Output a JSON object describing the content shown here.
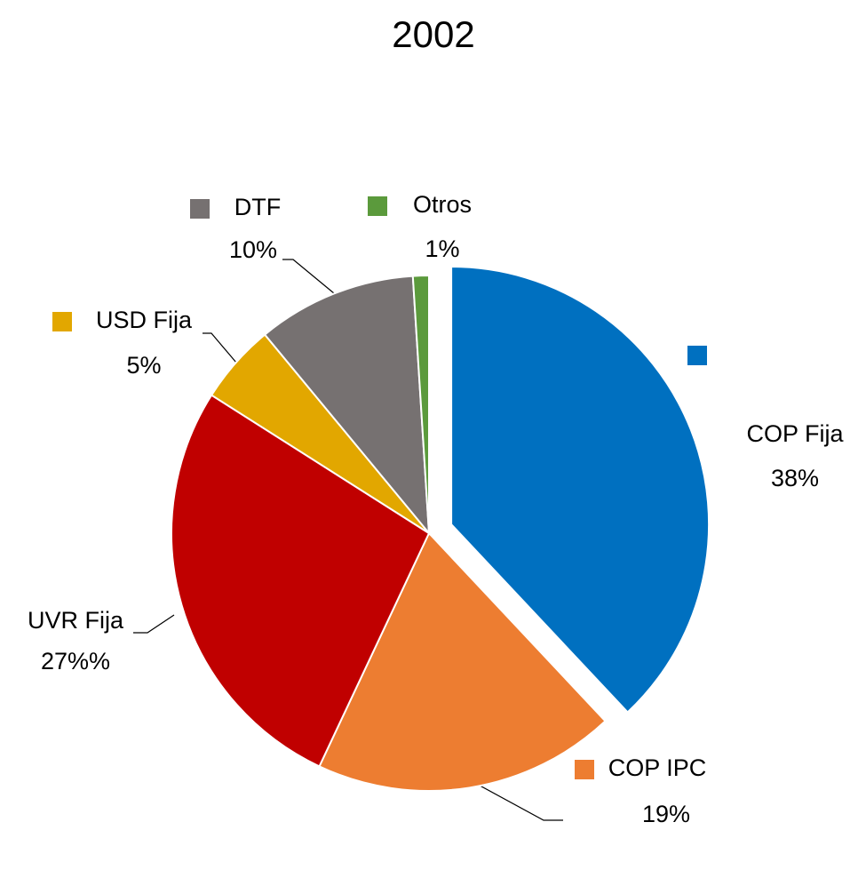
{
  "chart_data": {
    "type": "pie",
    "title": "2002",
    "categories": [
      "COP Fija",
      "COP IPC",
      "UVR Fija",
      "USD Fija",
      "DTF",
      "Otros"
    ],
    "values": [
      38,
      19,
      27,
      5,
      10,
      1
    ],
    "value_labels": [
      "38%",
      "19%",
      "27%%",
      "5%",
      "10%",
      "1%"
    ],
    "colors": [
      "#0070c0",
      "#ed7d31",
      "#c00000",
      "#e2a700",
      "#767171",
      "#5b9a3c"
    ]
  }
}
